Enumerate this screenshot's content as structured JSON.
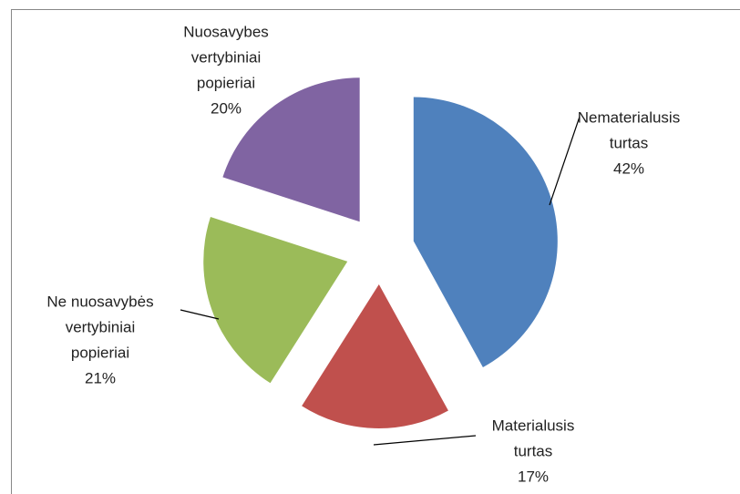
{
  "chart_data": {
    "type": "pie",
    "categories": [
      [
        "Nematerialusis",
        "turtas"
      ],
      [
        "Materialusis",
        "turtas"
      ],
      [
        "Ne nuosavybės",
        "vertybiniai",
        "popieriai"
      ],
      [
        "Nuosavybes",
        "vertybiniai",
        "popieriai"
      ]
    ],
    "values": [
      42,
      17,
      21,
      20
    ],
    "value_labels": [
      "42%",
      "17%",
      "21%",
      "20%"
    ],
    "colors": [
      "#4f81bd",
      "#c0504d",
      "#9bbb59",
      "#8064a2"
    ]
  }
}
